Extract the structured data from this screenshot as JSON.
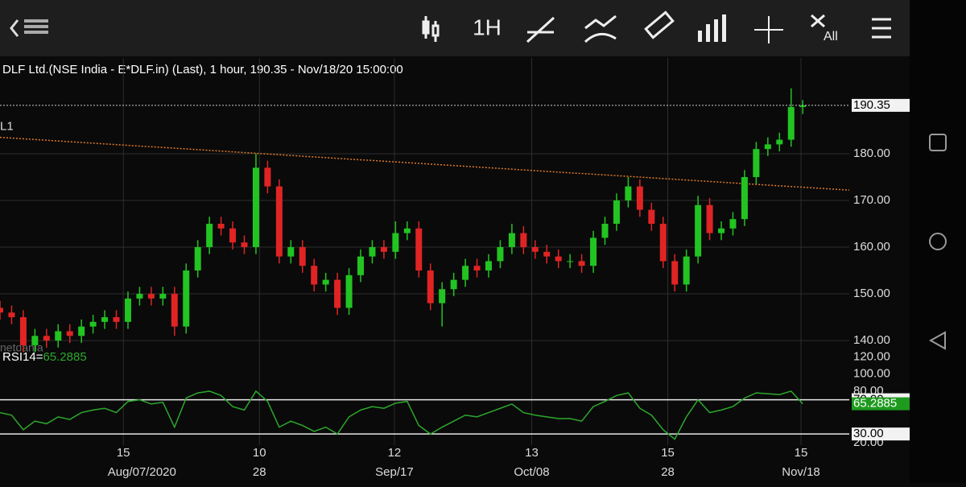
{
  "toolbar": {
    "timeframe": "1H",
    "clear": "All"
  },
  "chart_data": [
    {
      "type": "candlestick",
      "title": "DLF Ltd.(NSE India - E*DLF.in) (Last),  1 hour, 190.35 - Nov/18/20 15:00:00",
      "watermark": "netdania",
      "up_color": "#22c422",
      "down_color": "#e02424",
      "open": [
        147,
        146,
        145,
        139,
        141,
        140,
        142,
        141,
        143,
        144,
        145,
        144,
        149,
        150,
        149,
        150,
        143,
        155,
        160,
        165,
        164,
        161,
        160,
        177,
        173,
        158,
        160,
        156,
        152,
        153,
        147,
        154,
        158,
        160,
        159,
        163,
        164,
        155,
        148,
        151,
        153,
        156,
        155,
        157,
        160,
        163,
        160,
        159,
        158,
        157,
        157,
        156,
        162,
        165,
        170,
        173,
        168,
        165,
        157,
        152,
        158,
        169,
        163,
        164,
        166,
        175,
        181,
        182,
        183,
        190
      ],
      "high": [
        148.5,
        147.5,
        146.5,
        142.5,
        142.5,
        143.5,
        143.5,
        144.5,
        145.5,
        146.5,
        146.5,
        150.5,
        151.5,
        151.5,
        151.5,
        151.5,
        156.5,
        161.5,
        166.5,
        166.5,
        165.5,
        162.5,
        180,
        178.5,
        174.5,
        161.5,
        161.5,
        157.5,
        154.5,
        154.5,
        155.5,
        159.5,
        161.5,
        161.5,
        165.5,
        165.5,
        165.5,
        156.5,
        152.5,
        154.5,
        157.5,
        157.5,
        158.5,
        161.5,
        165,
        164.5,
        161.5,
        160.5,
        159.5,
        158.5,
        158.5,
        163.5,
        166.5,
        171.5,
        175,
        174.5,
        169.5,
        166.5,
        158.5,
        159.5,
        171,
        170.5,
        165.5,
        167.5,
        176.5,
        182.5,
        183.5,
        184.5,
        194,
        191.5
      ],
      "low": [
        144.5,
        143.5,
        137.5,
        137.5,
        138.5,
        138.5,
        139.5,
        139.5,
        141.5,
        142.5,
        142.5,
        142.5,
        147.5,
        147.5,
        147.5,
        141,
        141.5,
        153.5,
        158.5,
        162.5,
        159.5,
        158.5,
        158.5,
        171.5,
        156.5,
        156.5,
        154.5,
        150.5,
        150.5,
        145.5,
        145.5,
        152.5,
        156.5,
        157.5,
        157.5,
        161.5,
        153.5,
        146.5,
        143,
        149.5,
        151.5,
        153.5,
        153.5,
        155.5,
        158.5,
        158.5,
        157.5,
        156.5,
        155.5,
        155.5,
        154.5,
        154.5,
        160.5,
        163.5,
        168.5,
        166.5,
        163.5,
        155.5,
        150.5,
        150.5,
        156.5,
        161.5,
        161.5,
        162.5,
        164.5,
        173.5,
        179.5,
        180.5,
        181.5,
        188.5
      ],
      "close": [
        146,
        145,
        139,
        141,
        140,
        142,
        141,
        143,
        144,
        145,
        144,
        149,
        150,
        149,
        150,
        143,
        155,
        160,
        165,
        164,
        161,
        160,
        177,
        173,
        158,
        160,
        156,
        152,
        153,
        147,
        154,
        158,
        160,
        159,
        163,
        164,
        155,
        148,
        151,
        153,
        156,
        155,
        157,
        160,
        163,
        160,
        159,
        158,
        157,
        157,
        156,
        162,
        165,
        170,
        173,
        168,
        165,
        157,
        152,
        158,
        169,
        163,
        164,
        166,
        175,
        181,
        182,
        183,
        190,
        190.35
      ],
      "trendline": {
        "label": "L1",
        "color": "#e07a2a",
        "x": [
          0,
          73
        ],
        "values": [
          183.5,
          172.2
        ]
      },
      "xlim": [
        0,
        73
      ],
      "ylim": [
        137.6,
        200.5
      ],
      "yticks": [
        {
          "value": 140,
          "label": "140.00"
        },
        {
          "value": 150,
          "label": "150.00"
        },
        {
          "value": 160,
          "label": "160.00"
        },
        {
          "value": 170,
          "label": "170.00"
        },
        {
          "value": 180,
          "label": "180.00"
        }
      ],
      "xticks": [
        {
          "value": 10.6,
          "label": "15"
        },
        {
          "value": 22.3,
          "label": "10"
        },
        {
          "value": 33.9,
          "label": "12"
        },
        {
          "value": 45.7,
          "label": "13"
        },
        {
          "value": 57.4,
          "label": "15"
        },
        {
          "value": 68.85,
          "label": "15"
        }
      ],
      "xticks2": [
        {
          "value": 12.2,
          "label": "Aug/07/2020"
        },
        {
          "value": 22.3,
          "label": "28"
        },
        {
          "value": 33.9,
          "label": "Sep/17"
        },
        {
          "value": 45.7,
          "label": "Oct/08"
        },
        {
          "value": 57.4,
          "label": "28"
        },
        {
          "value": 68.85,
          "label": "Nov/18"
        }
      ],
      "grid": true
    },
    {
      "type": "line",
      "name": "RSI14=",
      "color": "#2ca82c",
      "values": [
        55,
        52,
        35,
        45,
        42,
        50,
        47,
        55,
        58,
        60,
        55,
        68,
        70,
        65,
        67,
        38,
        72,
        78,
        80,
        75,
        62,
        58,
        80,
        68,
        38,
        45,
        40,
        33,
        38,
        30,
        50,
        58,
        62,
        60,
        66,
        68,
        40,
        30,
        38,
        45,
        52,
        50,
        55,
        60,
        65,
        55,
        52,
        50,
        48,
        48,
        45,
        62,
        68,
        75,
        78,
        60,
        52,
        35,
        24,
        50,
        70,
        55,
        58,
        62,
        72,
        78,
        77,
        76,
        80,
        65.2885
      ],
      "xlim": [
        0,
        73
      ],
      "ylim": [
        17,
        126
      ],
      "yticks": [
        {
          "value": 20,
          "label": "20.00"
        },
        {
          "value": 80,
          "label": "80.00"
        },
        {
          "value": 100,
          "label": "100.00"
        },
        {
          "value": 120,
          "label": "120.00"
        }
      ],
      "levels": [
        {
          "value": 70,
          "label": "70.00"
        },
        {
          "value": 30,
          "label": "30.00"
        }
      ]
    }
  ]
}
